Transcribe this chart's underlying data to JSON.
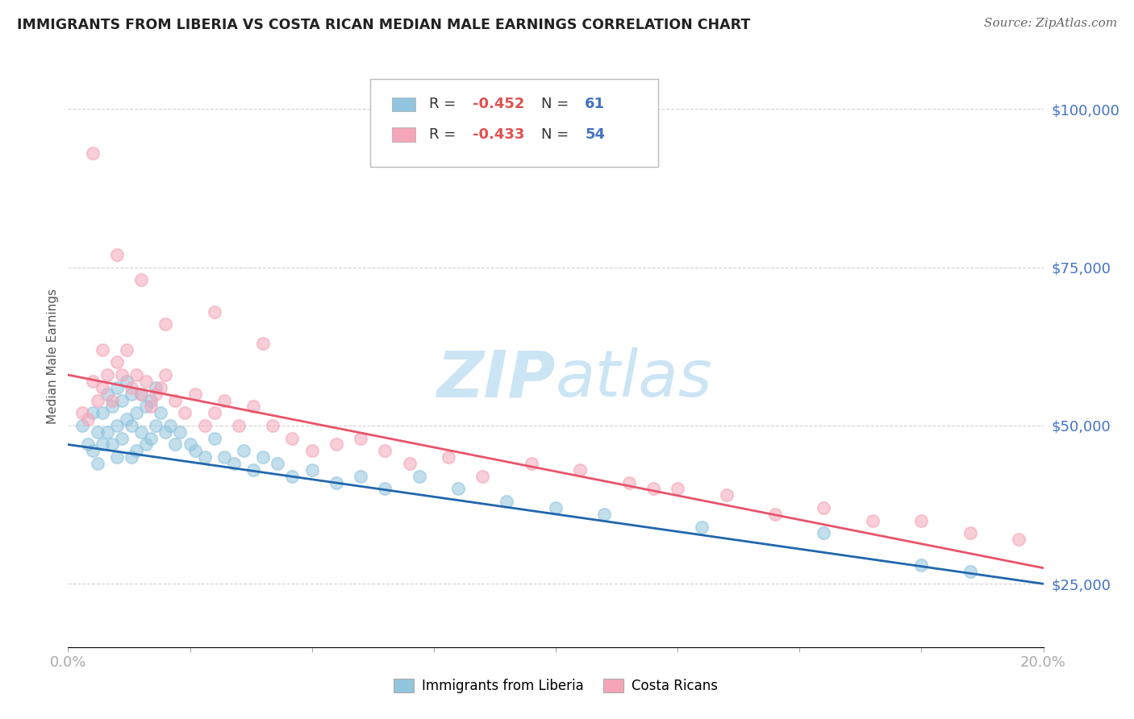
{
  "title": "IMMIGRANTS FROM LIBERIA VS COSTA RICAN MEDIAN MALE EARNINGS CORRELATION CHART",
  "source": "Source: ZipAtlas.com",
  "ylabel": "Median Male Earnings",
  "xlim": [
    0.0,
    0.2
  ],
  "ylim": [
    15000,
    107000
  ],
  "yticks": [
    25000,
    50000,
    75000,
    100000
  ],
  "ytick_labels": [
    "$25,000",
    "$50,000",
    "$75,000",
    "$100,000"
  ],
  "xticks": [
    0.0,
    0.025,
    0.05,
    0.075,
    0.1,
    0.125,
    0.15,
    0.175,
    0.2
  ],
  "xtick_labels": [
    "0.0%",
    "",
    "",
    "",
    "",
    "",
    "",
    "",
    "20.0%"
  ],
  "blue_color": "#92c5de",
  "pink_color": "#f4a6b8",
  "blue_line_color": "#2166ac",
  "pink_line_color": "#e8546a",
  "axis_color": "#4472c4",
  "watermark_color": "#cce5f5",
  "grid_color": "#c8c8c8",
  "background_color": "#ffffff",
  "blue_scatter_x": [
    0.003,
    0.004,
    0.005,
    0.005,
    0.006,
    0.006,
    0.007,
    0.007,
    0.008,
    0.008,
    0.009,
    0.009,
    0.01,
    0.01,
    0.01,
    0.011,
    0.011,
    0.012,
    0.012,
    0.013,
    0.013,
    0.013,
    0.014,
    0.014,
    0.015,
    0.015,
    0.016,
    0.016,
    0.017,
    0.017,
    0.018,
    0.018,
    0.019,
    0.02,
    0.021,
    0.022,
    0.023,
    0.025,
    0.026,
    0.028,
    0.03,
    0.032,
    0.034,
    0.036,
    0.038,
    0.04,
    0.043,
    0.046,
    0.05,
    0.055,
    0.06,
    0.065,
    0.072,
    0.08,
    0.09,
    0.1,
    0.11,
    0.13,
    0.155,
    0.175,
    0.185
  ],
  "blue_scatter_y": [
    50000,
    47000,
    52000,
    46000,
    49000,
    44000,
    52000,
    47000,
    55000,
    49000,
    53000,
    47000,
    56000,
    50000,
    45000,
    54000,
    48000,
    57000,
    51000,
    55000,
    50000,
    45000,
    52000,
    46000,
    55000,
    49000,
    53000,
    47000,
    54000,
    48000,
    56000,
    50000,
    52000,
    49000,
    50000,
    47000,
    49000,
    47000,
    46000,
    45000,
    48000,
    45000,
    44000,
    46000,
    43000,
    45000,
    44000,
    42000,
    43000,
    41000,
    42000,
    40000,
    42000,
    40000,
    38000,
    37000,
    36000,
    34000,
    33000,
    28000,
    27000
  ],
  "pink_scatter_x": [
    0.003,
    0.004,
    0.005,
    0.006,
    0.007,
    0.007,
    0.008,
    0.009,
    0.01,
    0.011,
    0.012,
    0.013,
    0.014,
    0.015,
    0.016,
    0.017,
    0.018,
    0.019,
    0.02,
    0.022,
    0.024,
    0.026,
    0.028,
    0.03,
    0.032,
    0.035,
    0.038,
    0.042,
    0.046,
    0.05,
    0.055,
    0.06,
    0.065,
    0.07,
    0.078,
    0.085,
    0.095,
    0.105,
    0.115,
    0.125,
    0.135,
    0.145,
    0.155,
    0.165,
    0.175,
    0.185,
    0.195,
    0.005,
    0.01,
    0.015,
    0.02,
    0.03,
    0.04,
    0.12
  ],
  "pink_scatter_y": [
    52000,
    51000,
    57000,
    54000,
    56000,
    62000,
    58000,
    54000,
    60000,
    58000,
    62000,
    56000,
    58000,
    55000,
    57000,
    53000,
    55000,
    56000,
    58000,
    54000,
    52000,
    55000,
    50000,
    52000,
    54000,
    50000,
    53000,
    50000,
    48000,
    46000,
    47000,
    48000,
    46000,
    44000,
    45000,
    42000,
    44000,
    43000,
    41000,
    40000,
    39000,
    36000,
    37000,
    35000,
    35000,
    33000,
    32000,
    93000,
    77000,
    73000,
    66000,
    68000,
    63000,
    40000
  ]
}
